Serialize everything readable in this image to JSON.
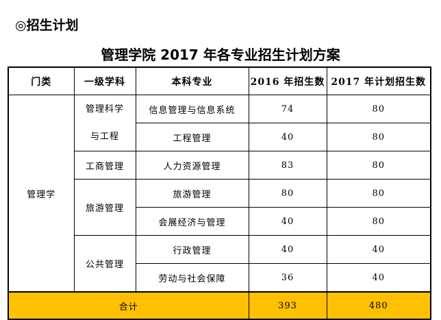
{
  "section_heading": "◎招生计划",
  "title": "管理学院 2017 年各专业招生计划方案",
  "table": {
    "headers": [
      "门类",
      "一级学科",
      "本科专业",
      "2016 年招生数",
      "2017 年计划招生数"
    ],
    "category": "管理学",
    "disciplines": {
      "d1_line1": "管理科学",
      "d1_line2": "与工程",
      "d2": "工商管理",
      "d3": "旅游管理",
      "d4": "公共管理"
    },
    "rows": [
      {
        "major": "信息管理与信息系统",
        "y2016": "74",
        "y2017": "80"
      },
      {
        "major": "工程管理",
        "y2016": "40",
        "y2017": "80"
      },
      {
        "major": "人力资源管理",
        "y2016": "83",
        "y2017": "80"
      },
      {
        "major": "旅游管理",
        "y2016": "80",
        "y2017": "80"
      },
      {
        "major": "会展经济与管理",
        "y2016": "40",
        "y2017": "80"
      },
      {
        "major": "行政管理",
        "y2016": "40",
        "y2017": "40"
      },
      {
        "major": "劳动与社会保障",
        "y2016": "36",
        "y2017": "40"
      }
    ],
    "total": {
      "label": "合计",
      "y2016": "393",
      "y2017": "480"
    },
    "total_color": "#ffc000"
  }
}
